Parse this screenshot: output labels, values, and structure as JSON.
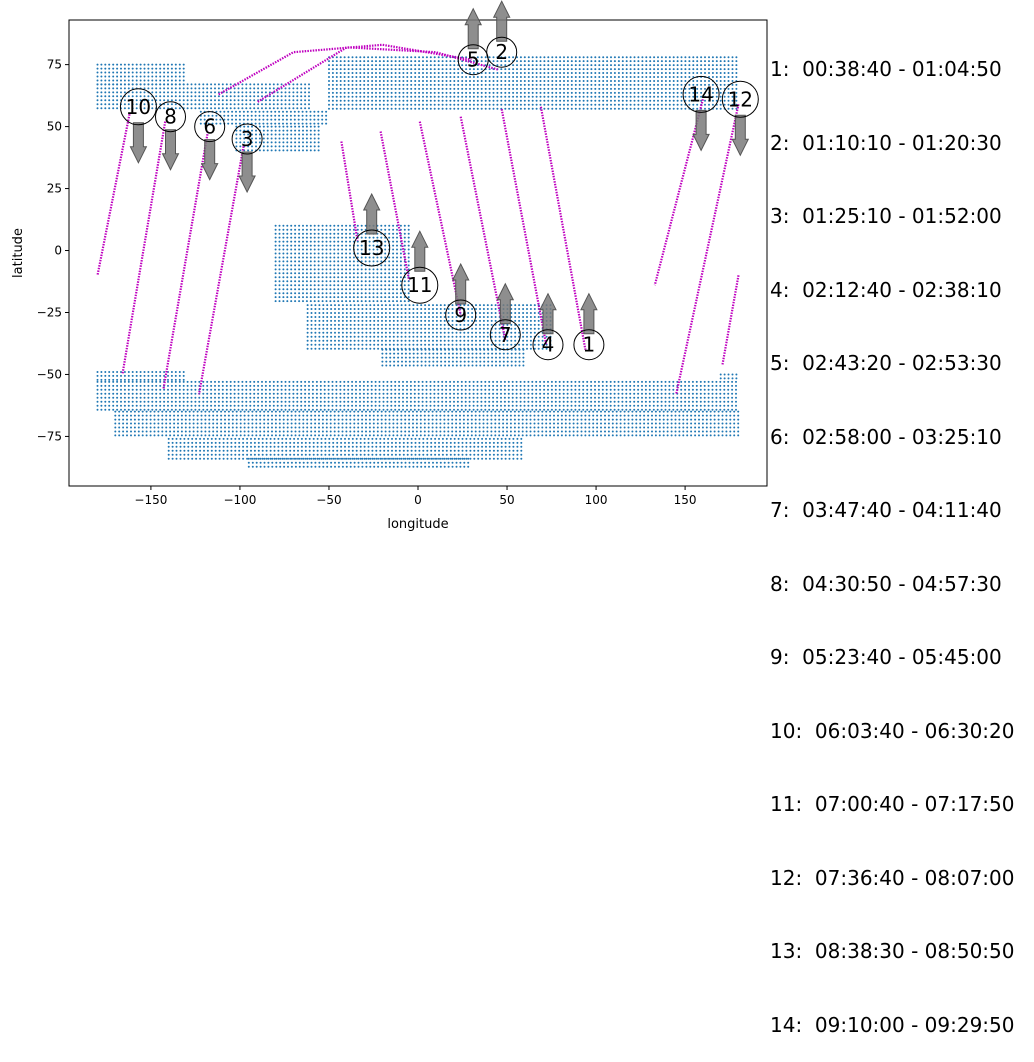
{
  "chart_data": {
    "type": "scatter",
    "title": "",
    "xlabel": "longitude",
    "ylabel": "latitude",
    "xlim": [
      -196,
      196
    ],
    "ylim": [
      -95,
      93
    ],
    "xticks": [
      -150,
      -100,
      -50,
      0,
      50,
      100,
      150
    ],
    "xtick_labels": [
      "−150",
      "−100",
      "−50",
      "0",
      "50",
      "100",
      "150"
    ],
    "yticks": [
      -75,
      -50,
      -25,
      0,
      25,
      50,
      75
    ],
    "ytick_labels": [
      "−75",
      "−50",
      "−25",
      "0",
      "25",
      "50",
      "75"
    ],
    "grid": false,
    "colors": {
      "land": "#1f77b4",
      "track": "#bf00bf",
      "arrow": "#7a7a7a",
      "marker": "#000000"
    },
    "land_bands": [
      {
        "lat": [
          75,
          67
        ],
        "lon": [
          -180,
          -130
        ]
      },
      {
        "lat": [
          67,
          56
        ],
        "lon": [
          -180,
          -60
        ]
      },
      {
        "lat": [
          56,
          50
        ],
        "lon": [
          -122,
          -50
        ]
      },
      {
        "lat": [
          50,
          40
        ],
        "lon": [
          -102,
          -55
        ]
      },
      {
        "lat": [
          78,
          56
        ],
        "lon": [
          -50,
          180
        ]
      },
      {
        "lat": [
          10,
          -22
        ],
        "lon": [
          -80,
          -5
        ]
      },
      {
        "lat": [
          -22,
          -40
        ],
        "lon": [
          -62,
          75
        ]
      },
      {
        "lat": [
          -40,
          -48
        ],
        "lon": [
          -20,
          60
        ]
      },
      {
        "lat": [
          -49,
          -53
        ],
        "lon": [
          -180,
          -130
        ]
      },
      {
        "lat": [
          -50,
          -53
        ],
        "lon": [
          170,
          180
        ]
      },
      {
        "lat": [
          -53,
          -65
        ],
        "lon": [
          -180,
          180
        ]
      },
      {
        "lat": [
          -65,
          -76
        ],
        "lon": [
          -170,
          180
        ]
      },
      {
        "lat": [
          -76,
          -84
        ],
        "lon": [
          -140,
          60
        ]
      },
      {
        "lat": [
          -84,
          -88
        ],
        "lon": [
          -95,
          30
        ]
      }
    ],
    "series": [
      {
        "id": "1",
        "points": [
          [
            69,
            58
          ],
          [
            94,
            -40
          ]
        ],
        "label_pos": [
          96,
          -38
        ],
        "arrow": "up"
      },
      {
        "id": "2",
        "points": [
          [
            -90,
            60
          ],
          [
            -40,
            82
          ],
          [
            10,
            80
          ],
          [
            45,
            73
          ]
        ],
        "label_pos": [
          47,
          80
        ],
        "arrow": "up"
      },
      {
        "id": "3",
        "points": [
          [
            -98,
            42
          ],
          [
            -123,
            -58
          ]
        ],
        "label_pos": [
          -96,
          45
        ],
        "arrow": "down"
      },
      {
        "id": "4",
        "points": [
          [
            47,
            57
          ],
          [
            72,
            -38
          ]
        ],
        "label_pos": [
          73,
          -38
        ],
        "arrow": "up"
      },
      {
        "id": "5",
        "points": [
          [
            -112,
            63
          ],
          [
            -70,
            80
          ],
          [
            -20,
            83
          ],
          [
            30,
            77
          ]
        ],
        "label_pos": [
          31,
          77
        ],
        "arrow": "up"
      },
      {
        "id": "6",
        "points": [
          [
            -118,
            48
          ],
          [
            -143,
            -56
          ]
        ],
        "label_pos": [
          -117,
          50
        ],
        "arrow": "down"
      },
      {
        "id": "7",
        "points": [
          [
            24,
            54
          ],
          [
            49,
            -36
          ]
        ],
        "label_pos": [
          49,
          -34
        ],
        "arrow": "up"
      },
      {
        "id": "8",
        "points": [
          [
            -142,
            52
          ],
          [
            -166,
            -50
          ]
        ],
        "label_pos": [
          -139,
          54
        ],
        "arrow": "down"
      },
      {
        "id": "9",
        "points": [
          [
            1,
            52
          ],
          [
            24,
            -26
          ]
        ],
        "label_pos": [
          24,
          -26
        ],
        "arrow": "up"
      },
      {
        "id": "10",
        "points": [
          [
            -162,
            55
          ],
          [
            -180,
            -10
          ]
        ],
        "label_pos": [
          -157,
          58
        ],
        "arrow": "down"
      },
      {
        "id": "11",
        "points": [
          [
            -21,
            48
          ],
          [
            -5,
            -12
          ]
        ],
        "label_pos": [
          1,
          -14
        ],
        "arrow": "up"
      },
      {
        "id": "12",
        "points": [
          [
            180,
            -10
          ],
          [
            171,
            -46
          ]
        ],
        "label_pos": [
          181,
          61
        ],
        "arrow": "down"
      },
      {
        "id": "13",
        "points": [
          [
            -43,
            44
          ],
          [
            -34,
            4
          ]
        ],
        "label_pos": [
          -26,
          1
        ],
        "arrow": "up"
      },
      {
        "id": "14",
        "points": [
          [
            160,
            61
          ],
          [
            133,
            -14
          ]
        ],
        "label_pos": [
          159,
          63
        ],
        "arrow": "down"
      },
      {
        "id": "12b",
        "points": [
          [
            180,
            59
          ],
          [
            145,
            -58
          ]
        ]
      }
    ],
    "legend": [
      "1:  00:38:40 - 01:04:50",
      "2:  01:10:10 - 01:20:30",
      "3:  01:25:10 - 01:52:00",
      "4:  02:12:40 - 02:38:10",
      "5:  02:43:20 - 02:53:30",
      "6:  02:58:00 - 03:25:10",
      "7:  03:47:40 - 04:11:40",
      "8:  04:30:50 - 04:57:30",
      "9:  05:23:40 - 05:45:00",
      "10:  06:03:40 - 06:30:20",
      "11:  07:00:40 - 07:17:50",
      "12:  07:36:40 - 08:07:00",
      "13:  08:38:30 - 08:50:50",
      "14:  09:10:00 - 09:29:50"
    ]
  }
}
